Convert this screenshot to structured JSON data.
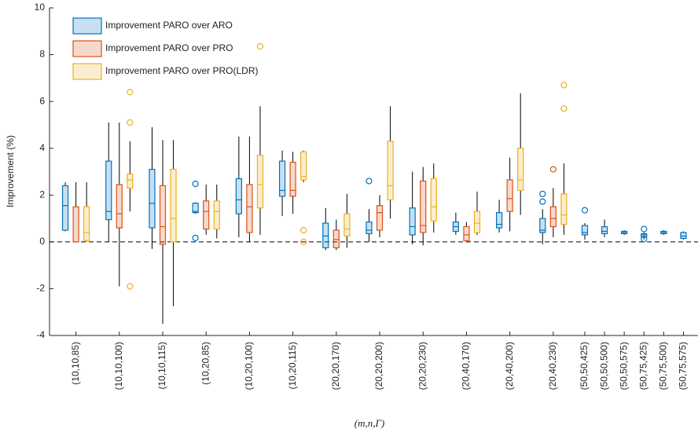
{
  "chart_data": {
    "type": "box",
    "xlabel": "(m,n,Γ)",
    "ylabel": "Improvement (%)",
    "ylim": [
      -4,
      10
    ],
    "yticks": [
      -4,
      -2,
      0,
      2,
      4,
      6,
      8,
      10
    ],
    "categories": [
      "(10,10,85)",
      "(10,10,100)",
      "(10,10,115)",
      "(10,20,85)",
      "(10,20,100)",
      "(10,20,115)",
      "(20,20,170)",
      "(20,20,200)",
      "(20,20,230)",
      "(20,40,170)",
      "(20,40,200)",
      "(20,40,230)",
      "(50,50,425)",
      "(50,50,500)",
      "(50,50,575)",
      "(50,75,425)",
      "(50,75,500)",
      "(50,75,575)"
    ],
    "series": [
      {
        "name": "Improvement PARO over ARO",
        "color": "#0072bd",
        "values": [
          {
            "min": 0.45,
            "q1": 0.5,
            "median": 1.55,
            "q3": 2.4,
            "max": 2.55,
            "outliers": []
          },
          {
            "min": 0,
            "q1": 0.95,
            "median": 1.3,
            "q3": 3.45,
            "max": 5.1,
            "outliers": []
          },
          {
            "min": -0.3,
            "q1": 0.6,
            "median": 1.65,
            "q3": 3.1,
            "max": 4.9,
            "outliers": []
          },
          {
            "min": 1.2,
            "q1": 1.25,
            "median": 1.3,
            "q3": 1.65,
            "max": 1.7,
            "outliers": [
              2.48,
              0.17
            ]
          },
          {
            "min": 0.2,
            "q1": 1.2,
            "median": 1.8,
            "q3": 2.7,
            "max": 4.5,
            "outliers": []
          },
          {
            "min": 1.1,
            "q1": 1.95,
            "median": 2.2,
            "q3": 3.45,
            "max": 3.9,
            "outliers": []
          },
          {
            "min": -0.35,
            "q1": -0.25,
            "median": 0.25,
            "q3": 0.8,
            "max": 1.45,
            "outliers": []
          },
          {
            "min": 0,
            "q1": 0.35,
            "median": 0.5,
            "q3": 0.85,
            "max": 1.4,
            "outliers": [
              2.6
            ]
          },
          {
            "min": -0.1,
            "q1": 0.3,
            "median": 0.65,
            "q3": 1.45,
            "max": 3.0,
            "outliers": []
          },
          {
            "min": 0.3,
            "q1": 0.45,
            "median": 0.65,
            "q3": 0.85,
            "max": 1.25,
            "outliers": []
          },
          {
            "min": 0.4,
            "q1": 0.6,
            "median": 0.75,
            "q3": 1.25,
            "max": 1.8,
            "outliers": []
          },
          {
            "min": -0.1,
            "q1": 0.4,
            "median": 0.5,
            "q3": 1.0,
            "max": 1.4,
            "outliers": [
              2.05,
              1.72
            ]
          },
          {
            "min": 0.1,
            "q1": 0.3,
            "median": 0.4,
            "q3": 0.7,
            "max": 0.8,
            "outliers": [
              1.35
            ]
          },
          {
            "min": 0.2,
            "q1": 0.35,
            "median": 0.45,
            "q3": 0.65,
            "max": 0.95,
            "outliers": []
          },
          {
            "min": 0.3,
            "q1": 0.35,
            "median": 0.4,
            "q3": 0.45,
            "max": 0.5,
            "outliers": []
          },
          {
            "min": 0.1,
            "q1": 0.2,
            "median": 0.3,
            "q3": 0.35,
            "max": 0.4,
            "outliers": [
              0.55,
              0.12
            ]
          },
          {
            "min": 0.3,
            "q1": 0.35,
            "median": 0.4,
            "q3": 0.45,
            "max": 0.5,
            "outliers": []
          },
          {
            "min": 0.1,
            "q1": 0.15,
            "median": 0.25,
            "q3": 0.4,
            "max": 0.45,
            "outliers": []
          }
        ]
      },
      {
        "name": "Improvement PARO over PRO",
        "color": "#d95319",
        "values": [
          {
            "min": 0,
            "q1": 0,
            "median": 0,
            "q3": 1.5,
            "max": 2.55,
            "outliers": []
          },
          {
            "min": -1.9,
            "q1": 0.6,
            "median": 1.2,
            "q3": 2.45,
            "max": 5.1,
            "outliers": []
          },
          {
            "min": -3.5,
            "q1": -0.1,
            "median": 0.65,
            "q3": 2.4,
            "max": 4.35,
            "outliers": []
          },
          {
            "min": 0.3,
            "q1": 0.55,
            "median": 1.3,
            "q3": 1.75,
            "max": 2.45,
            "outliers": []
          },
          {
            "min": 0,
            "q1": 0.4,
            "median": 1.5,
            "q3": 2.45,
            "max": 4.5,
            "outliers": []
          },
          {
            "min": 1.2,
            "q1": 1.95,
            "median": 2.2,
            "q3": 3.4,
            "max": 3.85,
            "outliers": []
          },
          {
            "min": -0.35,
            "q1": -0.25,
            "median": 0.1,
            "q3": 0.5,
            "max": 0.95,
            "outliers": []
          },
          {
            "min": 0.2,
            "q1": 0.5,
            "median": 1.25,
            "q3": 1.55,
            "max": 2.0,
            "outliers": []
          },
          {
            "min": -0.15,
            "q1": 0.4,
            "median": 0.7,
            "q3": 2.6,
            "max": 3.2,
            "outliers": []
          },
          {
            "min": 0,
            "q1": 0.05,
            "median": 0.3,
            "q3": 0.65,
            "max": 0.85,
            "outliers": []
          },
          {
            "min": 0.45,
            "q1": 1.3,
            "median": 1.85,
            "q3": 2.65,
            "max": 3.6,
            "outliers": []
          },
          {
            "min": 0.2,
            "q1": 0.65,
            "median": 1.0,
            "q3": 1.5,
            "max": 2.3,
            "outliers": [
              3.1
            ]
          },
          null,
          null,
          null,
          null,
          null,
          null
        ]
      },
      {
        "name": "Improvement PARO over PRO(LDR)",
        "color": "#edb120",
        "values": [
          {
            "min": 0,
            "q1": 0.05,
            "median": 0.4,
            "q3": 1.5,
            "max": 2.55,
            "outliers": []
          },
          {
            "min": 1.3,
            "q1": 2.3,
            "median": 2.65,
            "q3": 2.9,
            "max": 4.3,
            "outliers": [
              6.4,
              5.1,
              -1.9
            ]
          },
          {
            "min": -2.75,
            "q1": 0,
            "median": 1.0,
            "q3": 3.1,
            "max": 4.35,
            "outliers": []
          },
          {
            "min": 0.15,
            "q1": 0.55,
            "median": 1.3,
            "q3": 1.75,
            "max": 2.45,
            "outliers": []
          },
          {
            "min": 0.3,
            "q1": 1.45,
            "median": 2.45,
            "q3": 3.7,
            "max": 5.8,
            "outliers": [
              8.35
            ]
          },
          {
            "min": 2.55,
            "q1": 2.65,
            "median": 2.8,
            "q3": 3.85,
            "max": 3.9,
            "outliers": [
              0.5,
              0
            ]
          },
          {
            "min": -0.25,
            "q1": 0.25,
            "median": 0.55,
            "q3": 1.2,
            "max": 2.05,
            "outliers": []
          },
          {
            "min": 1.0,
            "q1": 1.8,
            "median": 2.4,
            "q3": 4.3,
            "max": 5.8,
            "outliers": []
          },
          {
            "min": 0.4,
            "q1": 0.9,
            "median": 1.5,
            "q3": 2.7,
            "max": 3.35,
            "outliers": []
          },
          {
            "min": 0.3,
            "q1": 0.4,
            "median": 0.8,
            "q3": 1.3,
            "max": 2.15,
            "outliers": []
          },
          {
            "min": 1.15,
            "q1": 2.2,
            "median": 2.65,
            "q3": 4.0,
            "max": 6.35,
            "outliers": []
          },
          {
            "min": 0.3,
            "q1": 0.75,
            "median": 1.15,
            "q3": 2.05,
            "max": 3.35,
            "outliers": [
              6.7,
              5.7
            ]
          },
          null,
          null,
          null,
          null,
          null,
          null
        ]
      }
    ]
  }
}
